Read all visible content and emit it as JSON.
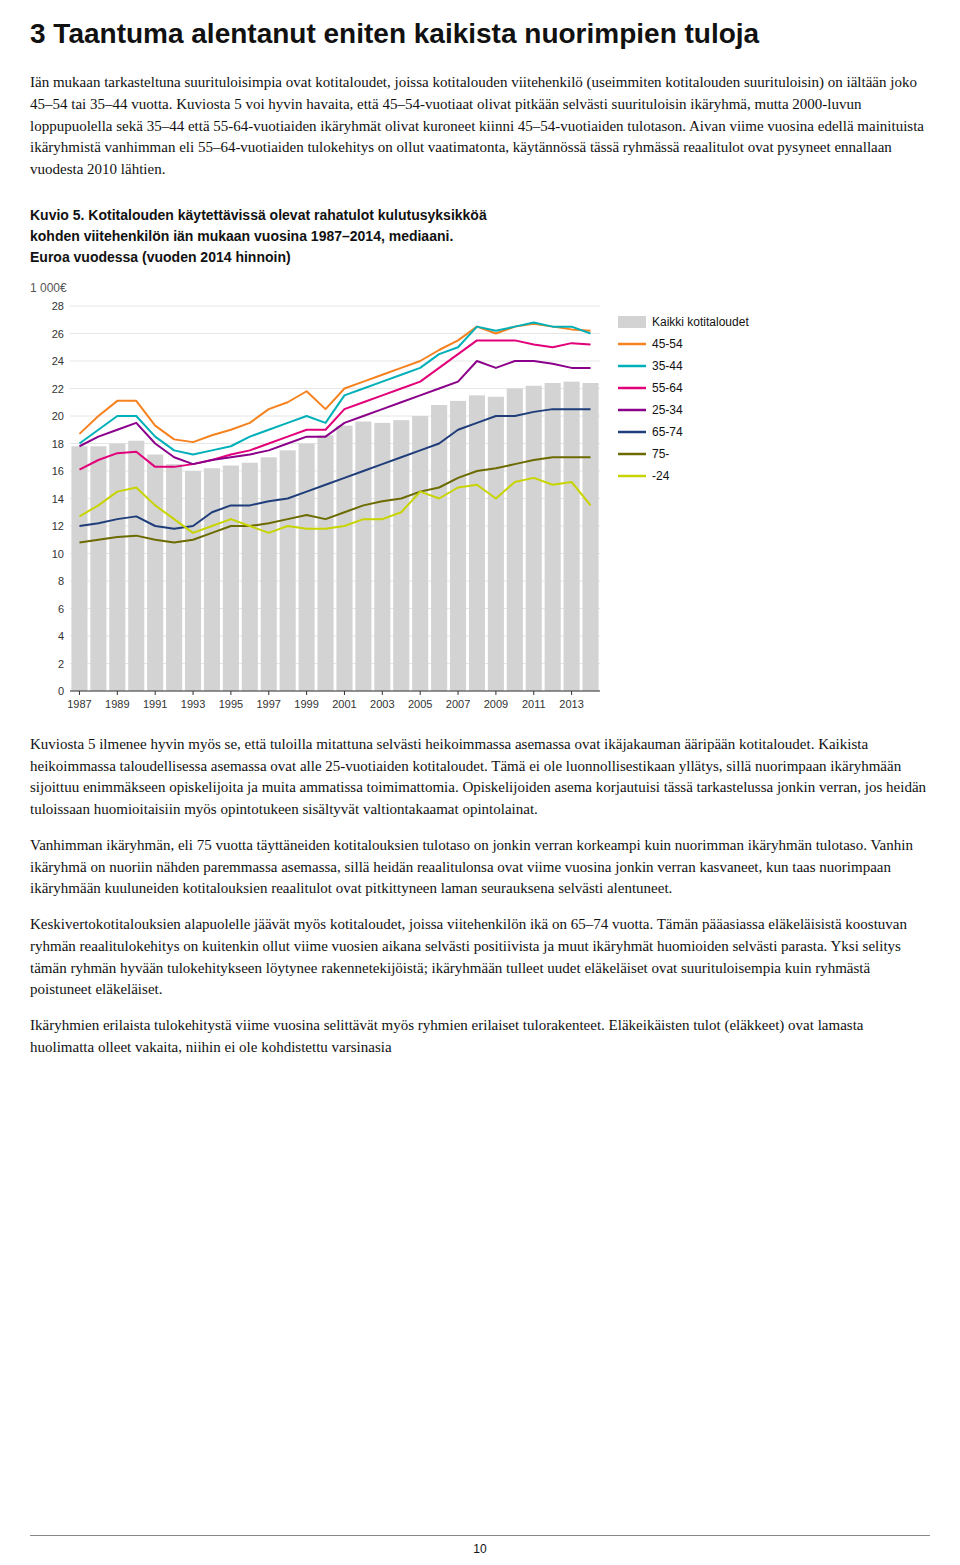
{
  "heading": "3 Taantuma alentanut eniten kaikista nuorimpien tuloja",
  "intro": [
    "Iän mukaan tarkasteltuna suurituloisimpia ovat kotitaloudet, joissa kotitalouden viitehenkilö (useimmiten kotitalouden suurituloisin) on iältään joko 45–54 tai 35–44 vuotta. Kuviosta 5 voi hyvin havaita, että 45–54-vuotiaat olivat pitkään selvästi suurituloisin ikäryhmä, mutta 2000-luvun loppupuolella sekä 35–44 että 55-64-vuotiaiden ikäryhmät olivat kuroneet kiinni 45–54-vuotiaiden tulotason. Aivan viime vuosina edellä mainituista ikäryhmistä vanhimman eli 55–64-vuotiaiden tulokehitys on ollut vaatimatonta, käytännössä tässä ryhmässä reaalitulot ovat pysyneet ennallaan vuodesta 2010 lähtien."
  ],
  "paragraphs": [
    "Kuviosta 5 ilmenee hyvin myös se, että tuloilla mitattuna selvästi heikoimmassa asemassa ovat ikäjakauman ääripään kotitaloudet. Kaikista heikoimmassa taloudellisessa asemassa ovat alle 25-vuotiaiden kotitaloudet. Tämä ei ole luonnollisestikaan yllätys, sillä nuorimpaan ikäryhmään sijoittuu enimmäkseen opiskelijoita ja muita ammatissa toimimattomia. Opiskelijoiden asema korjautuisi tässä tarkastelussa jonkin verran, jos heidän tuloissaan huomioitaisiin myös opintotukeen sisältyvät valtiontakaamat opintolainat.",
    "Vanhimman ikäryhmän, eli 75 vuotta täyttäneiden kotitalouksien tulotaso on jonkin verran korkeampi kuin nuorimman ikäryhmän tulotaso. Vanhin ikäryhmä on nuoriin nähden paremmassa asemassa, sillä heidän reaalitulonsa ovat viime vuosina jonkin verran kasvaneet, kun taas nuorimpaan ikäryhmään kuuluneiden kotitalouksien reaalitulot ovat pitkittyneen laman seurauksena selvästi alentuneet.",
    "Keskivertokotitalouksien alapuolelle jäävät myös kotitaloudet, joissa viitehenkilön ikä on 65–74 vuotta. Tämän pääasiassa eläkeläisistä koostuvan ryhmän reaalitulokehitys on kuitenkin ollut viime vuosien aikana selvästi positiivista ja muut ikäryhmät huomioiden selvästi parasta. Yksi selitys tämän ryhmän hyvään tulokehitykseen löytynee rakennetekijöistä; ikäryhmään tulleet uudet eläkeläiset ovat suurituloisempia kuin ryhmästä poistuneet eläkeläiset.",
    "Ikäryhmien erilaista tulokehitystä viime vuosina selittävät myös ryhmien erilaiset tulorakenteet. Eläkeikäisten tulot (eläkkeet) ovat lamasta huolimatta olleet vakaita, niihin ei ole kohdistettu varsinasia"
  ],
  "page_number": "10",
  "chart_data": {
    "type": "bar",
    "title": "Kuvio 5. Kotitalouden käytettävissä olevat rahatulot kulutusyksikköä\nkohden viitehenkilön iän mukaan vuosina 1987–2014, mediaani.\nEuroa vuodessa (vuoden 2014 hinnoin)",
    "y_label": "1 000€",
    "categories": [
      "1987",
      null,
      "1989",
      null,
      "1991",
      null,
      "1993",
      null,
      "1995",
      null,
      "1997",
      null,
      "1999",
      null,
      "2001",
      null,
      "2003",
      null,
      "2005",
      null,
      "2007",
      null,
      "2009",
      null,
      "2011",
      null,
      "2013",
      null
    ],
    "series": [
      {
        "name": "Kaikki kotitaloudet",
        "type": "bar",
        "color": "#d3d3d3",
        "values": [
          17.8,
          17.8,
          18.0,
          18.2,
          17.2,
          16.5,
          16.0,
          16.2,
          16.4,
          16.6,
          17.0,
          17.5,
          18.0,
          18.6,
          19.3,
          19.6,
          19.5,
          19.7,
          20.0,
          20.8,
          21.1,
          21.5,
          21.4,
          22.0,
          22.2,
          22.4,
          22.5,
          22.4
        ]
      },
      {
        "name": "45-54",
        "type": "line",
        "color": "#f5821e",
        "values": [
          18.7,
          20.0,
          21.1,
          21.1,
          19.3,
          18.3,
          18.1,
          18.6,
          19.0,
          19.5,
          20.5,
          21.0,
          21.8,
          20.5,
          22.0,
          22.5,
          23.0,
          23.5,
          24.0,
          24.8,
          25.5,
          26.5,
          26.0,
          26.5,
          26.7,
          26.5,
          26.3,
          26.2
        ]
      },
      {
        "name": "35-44",
        "type": "line",
        "color": "#00b0b9",
        "values": [
          18.0,
          19.0,
          20.0,
          20.0,
          18.5,
          17.5,
          17.2,
          17.5,
          17.8,
          18.5,
          19.0,
          19.5,
          20.0,
          19.5,
          21.5,
          22.0,
          22.5,
          23.0,
          23.5,
          24.5,
          25.0,
          26.5,
          26.2,
          26.5,
          26.8,
          26.5,
          26.5,
          26.0
        ]
      },
      {
        "name": "55-64",
        "type": "line",
        "color": "#e2007a",
        "values": [
          16.1,
          16.8,
          17.3,
          17.4,
          16.3,
          16.3,
          16.5,
          16.8,
          17.2,
          17.5,
          18.0,
          18.5,
          19.0,
          19.0,
          20.5,
          21.0,
          21.5,
          22.0,
          22.5,
          23.5,
          24.5,
          25.5,
          25.5,
          25.5,
          25.2,
          25.0,
          25.3,
          25.2
        ]
      },
      {
        "name": "25-34",
        "type": "line",
        "color": "#8b008b",
        "values": [
          17.8,
          18.5,
          19.0,
          19.5,
          18.0,
          17.0,
          16.5,
          16.8,
          17.0,
          17.2,
          17.5,
          18.0,
          18.5,
          18.5,
          19.5,
          20.0,
          20.5,
          21.0,
          21.5,
          22.0,
          22.5,
          24.0,
          23.5,
          24.0,
          24.0,
          23.8,
          23.5,
          23.5
        ]
      },
      {
        "name": "65-74",
        "type": "line",
        "color": "#1f3d7a",
        "values": [
          12.0,
          12.2,
          12.5,
          12.7,
          12.0,
          11.8,
          12.0,
          13.0,
          13.5,
          13.5,
          13.8,
          14.0,
          14.5,
          15.0,
          15.5,
          16.0,
          16.5,
          17.0,
          17.5,
          18.0,
          19.0,
          19.5,
          20.0,
          20.0,
          20.3,
          20.5,
          20.5,
          20.5
        ]
      },
      {
        "name": "75-",
        "type": "line",
        "color": "#6b6b00",
        "values": [
          10.8,
          11.0,
          11.2,
          11.3,
          11.0,
          10.8,
          11.0,
          11.5,
          12.0,
          12.0,
          12.2,
          12.5,
          12.8,
          12.5,
          13.0,
          13.5,
          13.8,
          14.0,
          14.5,
          14.8,
          15.5,
          16.0,
          16.2,
          16.5,
          16.8,
          17.0,
          17.0,
          17.0
        ]
      },
      {
        "name": "-24",
        "type": "line",
        "color": "#c8d400",
        "values": [
          12.7,
          13.5,
          14.5,
          14.8,
          13.5,
          12.5,
          11.5,
          12.0,
          12.5,
          12.0,
          11.5,
          12.0,
          11.8,
          11.8,
          12.0,
          12.5,
          12.5,
          13.0,
          14.5,
          14.0,
          14.8,
          15.0,
          14.0,
          15.2,
          15.5,
          15.0,
          15.2,
          13.5
        ]
      }
    ],
    "ylim": [
      0,
      28
    ],
    "yticks": [
      0,
      2,
      4,
      6,
      8,
      10,
      12,
      14,
      16,
      18,
      20,
      22,
      24,
      26,
      28
    ],
    "grid": true,
    "legend": "right"
  }
}
